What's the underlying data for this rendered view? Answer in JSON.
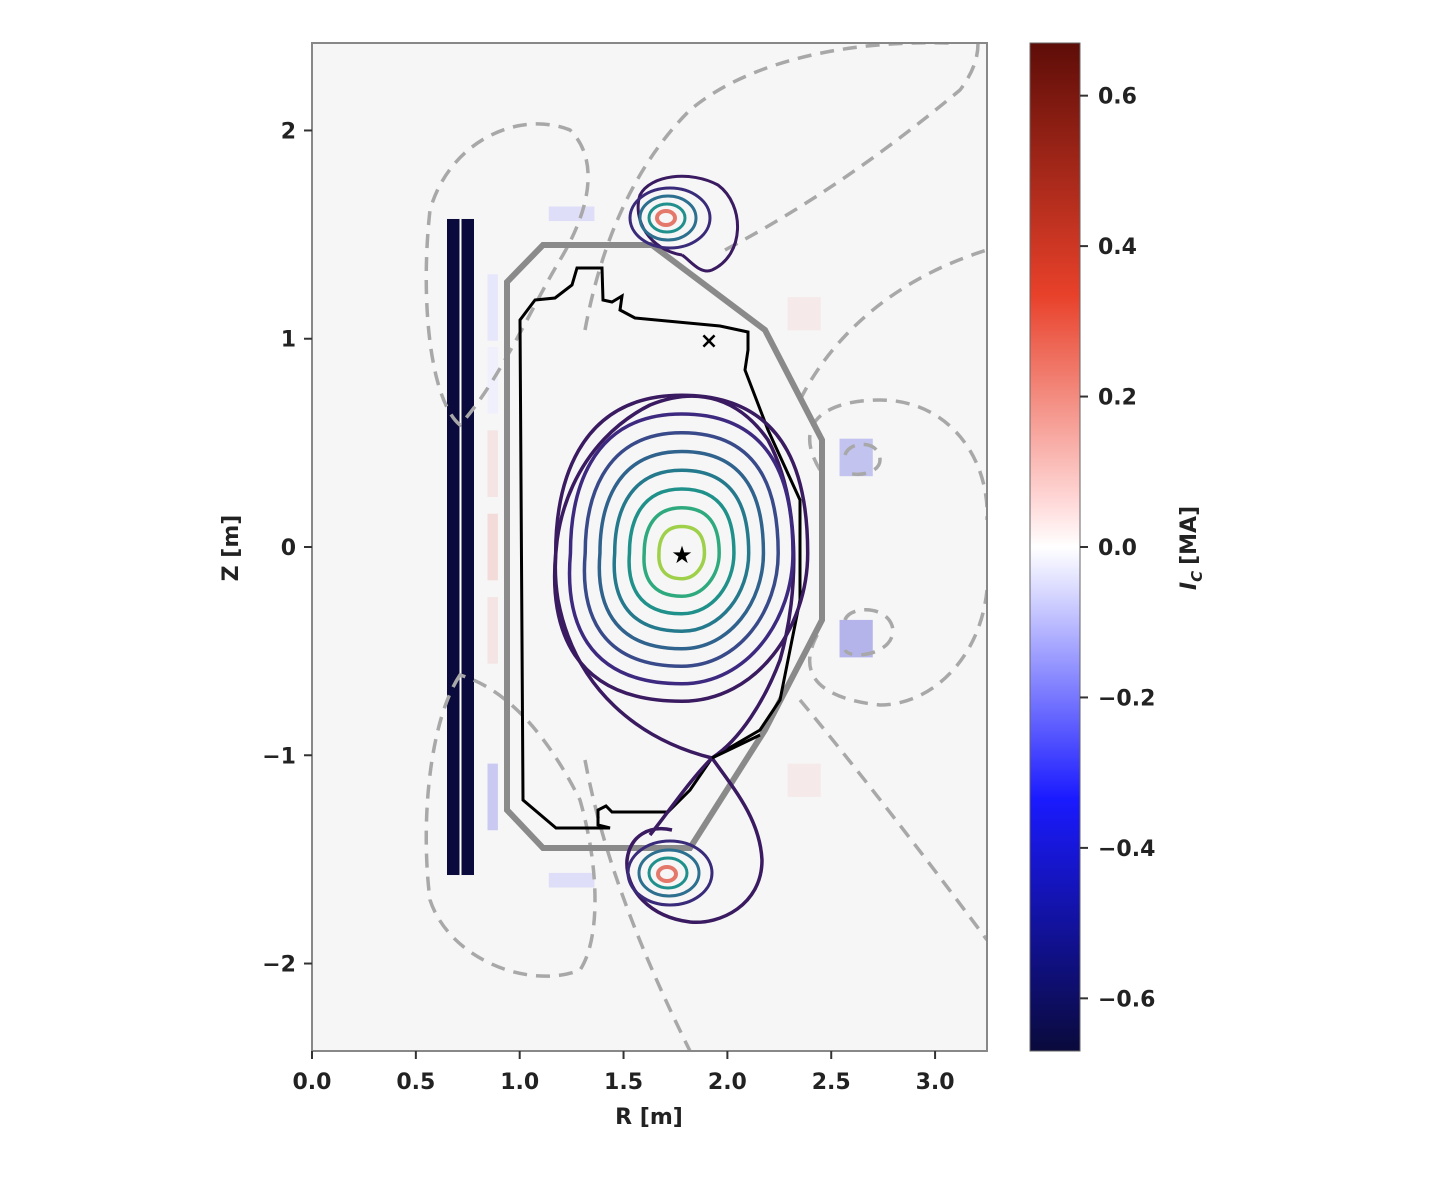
{
  "chart_data": {
    "type": "contour",
    "xlabel": "R [m]",
    "ylabel": "Z [m]",
    "xlim": [
      0.0,
      3.25
    ],
    "ylim": [
      -2.42,
      2.42
    ],
    "x_ticks": [
      "0.0",
      "0.5",
      "1.0",
      "1.5",
      "2.0",
      "2.5",
      "3.0"
    ],
    "y_ticks": [
      "2",
      "1",
      "0",
      "−1",
      "−2"
    ],
    "colorbar": {
      "label_main": "I",
      "label_sub": "C",
      "label_units": "[MA]",
      "range": [
        -0.67,
        0.67
      ],
      "ticks": [
        "0.6",
        "0.4",
        "0.2",
        "0.0",
        "−0.2",
        "−0.4",
        "−0.6"
      ],
      "colors": [
        "#0a0a3c",
        "#1a1aff",
        "#f2f2ff",
        "#ffffff",
        "#ffdede",
        "#e8412a",
        "#6a0e0a"
      ]
    },
    "magnetic_axis": [
      1.78,
      -0.03
    ],
    "x_point": [
      1.91,
      0.99
    ],
    "core_contours": {
      "center": [
        1.78,
        -0.03
      ],
      "count": 8
    },
    "upper_coil_center": [
      1.71,
      1.58
    ],
    "lower_coil_center": [
      1.71,
      -1.58
    ],
    "coils": [
      {
        "r": 0.715,
        "z": 0.0,
        "w": 0.13,
        "h": 3.15,
        "current": -0.67
      },
      {
        "r": 0.87,
        "z": 1.15,
        "w": 0.05,
        "h": 0.32,
        "current": -0.05
      },
      {
        "r": 0.87,
        "z": 0.8,
        "w": 0.05,
        "h": 0.32,
        "current": -0.02
      },
      {
        "r": 0.87,
        "z": 0.4,
        "w": 0.05,
        "h": 0.32,
        "current": 0.06
      },
      {
        "r": 0.87,
        "z": 0.0,
        "w": 0.05,
        "h": 0.32,
        "current": 0.09
      },
      {
        "r": 0.87,
        "z": -0.4,
        "w": 0.05,
        "h": 0.32,
        "current": 0.06
      },
      {
        "r": 0.87,
        "z": -1.2,
        "w": 0.05,
        "h": 0.32,
        "current": -0.15
      },
      {
        "r": 2.62,
        "z": 0.43,
        "w": 0.16,
        "h": 0.18,
        "current": -0.17
      },
      {
        "r": 2.62,
        "z": -0.44,
        "w": 0.16,
        "h": 0.18,
        "current": -0.22
      },
      {
        "r": 1.25,
        "z": 1.6,
        "w": 0.22,
        "h": 0.07,
        "current": -0.08
      },
      {
        "r": 1.25,
        "z": -1.6,
        "w": 0.22,
        "h": 0.07,
        "current": -0.08
      },
      {
        "r": 2.37,
        "z": 1.12,
        "w": 0.16,
        "h": 0.16,
        "current": 0.04
      },
      {
        "r": 2.37,
        "z": -1.12,
        "w": 0.16,
        "h": 0.16,
        "current": 0.04
      }
    ]
  }
}
